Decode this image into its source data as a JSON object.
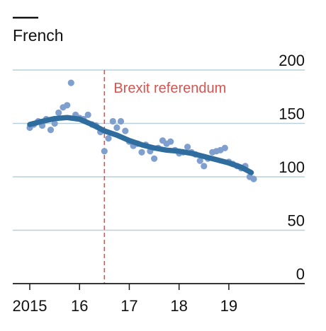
{
  "colors": {
    "series": "#2e6d9e",
    "points": "#7f9fcf",
    "gridline": "#b9cfd9",
    "axis": "#1a1a1a",
    "annotation": "#d9534f"
  },
  "chart_data": {
    "type": "scatter",
    "title": "French",
    "xlabel": "",
    "ylabel": "",
    "ylim": [
      0,
      200
    ],
    "xlim": [
      2014.95,
      2019.7
    ],
    "grid": true,
    "x_ticks": [
      {
        "value": 2015,
        "label": "2015"
      },
      {
        "value": 2016,
        "label": "16"
      },
      {
        "value": 2017,
        "label": "17"
      },
      {
        "value": 2018,
        "label": "18"
      },
      {
        "value": 2019,
        "label": "19"
      }
    ],
    "y_ticks": [
      {
        "value": 0,
        "label": "0"
      },
      {
        "value": 50,
        "label": "50"
      },
      {
        "value": 100,
        "label": "100"
      },
      {
        "value": 150,
        "label": "150"
      },
      {
        "value": 200,
        "label": "200"
      }
    ],
    "annotation": {
      "x": 2016.5,
      "label": "Brexit referendum"
    },
    "points": [
      [
        2015.0,
        146
      ],
      [
        2015.08,
        149
      ],
      [
        2015.17,
        152
      ],
      [
        2015.25,
        148
      ],
      [
        2015.33,
        154
      ],
      [
        2015.42,
        144
      ],
      [
        2015.5,
        150
      ],
      [
        2015.58,
        160
      ],
      [
        2015.67,
        165
      ],
      [
        2015.75,
        167
      ],
      [
        2015.83,
        188
      ],
      [
        2015.92,
        158
      ],
      [
        2016.0,
        155
      ],
      [
        2016.08,
        154
      ],
      [
        2016.17,
        158
      ],
      [
        2016.25,
        149
      ],
      [
        2016.33,
        148
      ],
      [
        2016.42,
        142
      ],
      [
        2016.5,
        124
      ],
      [
        2016.58,
        136
      ],
      [
        2016.67,
        152
      ],
      [
        2016.75,
        146
      ],
      [
        2016.83,
        152
      ],
      [
        2016.92,
        143
      ],
      [
        2017.0,
        133
      ],
      [
        2017.08,
        129
      ],
      [
        2017.17,
        131
      ],
      [
        2017.25,
        123
      ],
      [
        2017.33,
        130
      ],
      [
        2017.42,
        124
      ],
      [
        2017.5,
        117
      ],
      [
        2017.58,
        127
      ],
      [
        2017.67,
        134
      ],
      [
        2017.75,
        131
      ],
      [
        2017.83,
        133
      ],
      [
        2017.92,
        125
      ],
      [
        2018.0,
        122
      ],
      [
        2018.08,
        123
      ],
      [
        2018.17,
        128
      ],
      [
        2018.25,
        123
      ],
      [
        2018.33,
        121
      ],
      [
        2018.42,
        115
      ],
      [
        2018.5,
        110
      ],
      [
        2018.58,
        117
      ],
      [
        2018.67,
        123
      ],
      [
        2018.75,
        124
      ],
      [
        2018.83,
        125
      ],
      [
        2018.92,
        127
      ],
      [
        2019.0,
        114
      ],
      [
        2019.08,
        112
      ],
      [
        2019.17,
        110
      ],
      [
        2019.25,
        108
      ],
      [
        2019.33,
        110
      ],
      [
        2019.42,
        100
      ],
      [
        2019.5,
        98
      ]
    ],
    "trend": [
      [
        2015.0,
        149
      ],
      [
        2015.25,
        152
      ],
      [
        2015.5,
        154.5
      ],
      [
        2015.75,
        155.5
      ],
      [
        2016.0,
        154
      ],
      [
        2016.25,
        149
      ],
      [
        2016.5,
        143
      ],
      [
        2016.75,
        139
      ],
      [
        2017.0,
        134
      ],
      [
        2017.25,
        130
      ],
      [
        2017.5,
        127
      ],
      [
        2017.75,
        125
      ],
      [
        2018.0,
        124
      ],
      [
        2018.25,
        122
      ],
      [
        2018.5,
        119
      ],
      [
        2018.75,
        116
      ],
      [
        2019.0,
        113
      ],
      [
        2019.25,
        109
      ],
      [
        2019.45,
        104
      ]
    ]
  }
}
